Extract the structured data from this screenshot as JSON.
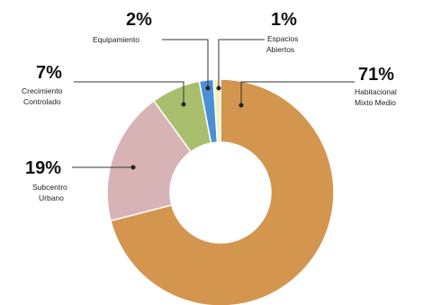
{
  "chart_data": {
    "type": "donut",
    "series": [
      {
        "name": "",
        "values": [
          71,
          19,
          7,
          2,
          1
        ]
      }
    ],
    "categories": [
      "Habitacional Mixto Medio",
      "Subcentro Urbano",
      "Crecimiento Controlado",
      "Equipamiento",
      "Espacios Abiertos"
    ],
    "slices": [
      {
        "label_lines": [
          "Habitacional",
          "Mixto Medio"
        ],
        "value": 71,
        "display": "71%",
        "color": "#D4954F"
      },
      {
        "label_lines": [
          "Subcentro",
          "Urbano"
        ],
        "value": 19,
        "display": "19%",
        "color": "#D7B3B6"
      },
      {
        "label_lines": [
          "Crecimiento",
          "Controlado"
        ],
        "value": 7,
        "display": "7%",
        "color": "#A8BE6D"
      },
      {
        "label_lines": [
          "Equipamiento"
        ],
        "value": 2,
        "display": "2%",
        "color": "#4B8FD6"
      },
      {
        "label_lines": [
          "Espacios",
          "Abiertos"
        ],
        "value": 1,
        "display": "1%",
        "color": "#F4F1BE"
      }
    ]
  }
}
